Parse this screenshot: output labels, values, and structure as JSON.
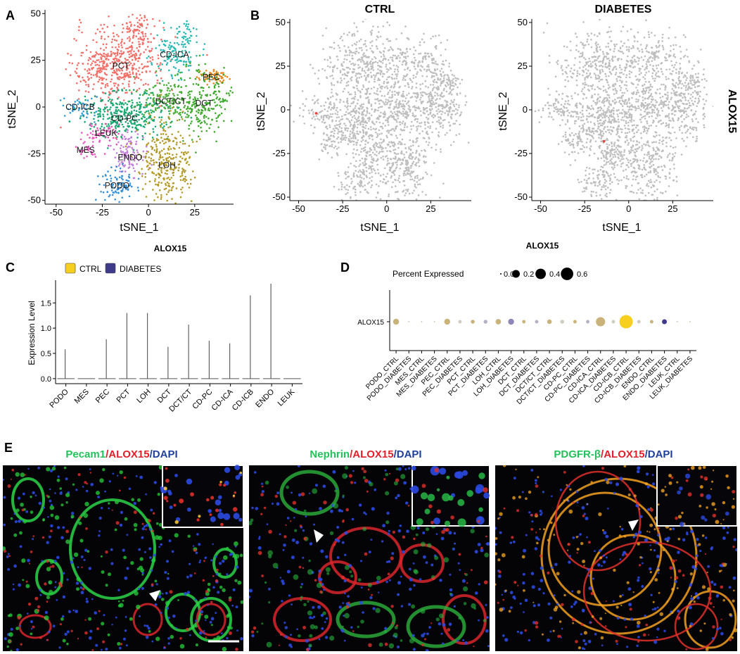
{
  "panels": {
    "A": "A",
    "B": "B",
    "C": "C",
    "D": "D",
    "E": "E"
  },
  "chart_data": [
    {
      "panel": "A",
      "type": "scatter",
      "xlabel": "tSNE_1",
      "ylabel": "tSNE_2",
      "xticks": [
        -50,
        -25,
        0,
        25
      ],
      "yticks": [
        50,
        25,
        0,
        -25,
        -50
      ],
      "xlim": [
        -56,
        46
      ],
      "ylim": [
        -52,
        52
      ],
      "clusters": [
        {
          "name": "PCT",
          "color": "#F2706A",
          "x": -15,
          "y": 22
        },
        {
          "name": "CD-ICA",
          "color": "#27B9B2",
          "x": 14,
          "y": 28
        },
        {
          "name": "PEC",
          "color": "#E8861A",
          "x": 34,
          "y": 16
        },
        {
          "name": "CD-ICB",
          "color": "#2E9DD8",
          "x": -37,
          "y": 0
        },
        {
          "name": "DCT/CT",
          "color": "#4BAE3A",
          "x": 12,
          "y": 3
        },
        {
          "name": "DCT",
          "color": "#3FAA2E",
          "x": 30,
          "y": 2
        },
        {
          "name": "CD-PC",
          "color": "#19A874",
          "x": -13,
          "y": -6
        },
        {
          "name": "LEUK",
          "color": "#E24FB1",
          "x": -23,
          "y": -14
        },
        {
          "name": "MES",
          "color": "#EB5AC0",
          "x": -34,
          "y": -23
        },
        {
          "name": "ENDO",
          "color": "#C37FD8",
          "x": -10,
          "y": -27
        },
        {
          "name": "LOH",
          "color": "#B39A27",
          "x": 10,
          "y": -31
        },
        {
          "name": "PODO",
          "color": "#3591D6",
          "x": -17,
          "y": -42
        }
      ]
    },
    {
      "panel": "B",
      "type": "scatter",
      "xlabel": "tSNE_1",
      "ylabel": "tSNE_2",
      "xticks": [
        -50,
        -25,
        0,
        25
      ],
      "yticks": [
        50,
        25,
        0,
        -25,
        -50
      ],
      "xlim": [
        -55,
        48
      ],
      "ylim": [
        -52,
        52
      ],
      "feature": "ALOX15",
      "base_color": "#BEBEBE",
      "highlight_color": "#E8403A",
      "panels": [
        {
          "title": "CTRL",
          "highlight": [
            {
              "x": -40,
              "y": -2
            }
          ]
        },
        {
          "title": "DIABETES",
          "highlight": [
            {
              "x": -14,
              "y": -18
            }
          ]
        }
      ]
    },
    {
      "panel": "C",
      "type": "violin",
      "title": "ALOX15",
      "ylabel": "Expression Level",
      "legend": [
        {
          "name": "CTRL",
          "color": "#F7CF1E"
        },
        {
          "name": "DIABETES",
          "color": "#3F3A8A"
        }
      ],
      "categories": [
        "PODO",
        "MES",
        "PEC",
        "PCT",
        "LOH",
        "DCT",
        "DCT/CT",
        "CD-PC",
        "CD-ICA",
        "CD-ICB",
        "ENDO",
        "LEUK"
      ],
      "max_values": [
        0.58,
        0.0,
        0.78,
        1.3,
        1.3,
        0.63,
        1.07,
        0.75,
        0.7,
        1.65,
        1.88,
        0.0
      ],
      "yticks": [
        0.0,
        0.5,
        1.0,
        1.5
      ],
      "ylim": [
        -0.1,
        1.95
      ]
    },
    {
      "panel": "D",
      "type": "dot",
      "title": "ALOX15",
      "size_legend_title": "Percent Expressed",
      "size_legend": [
        0.0,
        0.2,
        0.4,
        0.6
      ],
      "size_legend_labels": [
        "0.0",
        "0.2",
        "0.4",
        "0.6"
      ],
      "row_label": "ALOX15",
      "categories": [
        "PODO_CTRL",
        "PODO_DIABETES",
        "MES_CTRL",
        "MES_DIABETES",
        "PEC_CTRL",
        "PEC_DIABETES",
        "PCT_CTRL",
        "PCT_DIABETES",
        "LOH_CTRL",
        "LOH_DIABETES",
        "DCT_CTRL",
        "DCT_DIABETES",
        "DCT/CT_CTRL",
        "DCT/CT_DIABETES",
        "CD-PC_CTRL",
        "CD-PC_DIABETES",
        "CD-ICA_CTRL",
        "CD-ICA_DIABETES",
        "CD-ICB_CTRL",
        "CD-ICB_DIABETES",
        "ENDO_CTRL",
        "ENDO_DIABETES",
        "LEUK_CTRL",
        "LEUK_DIABETES"
      ],
      "percent": [
        0.1,
        0.0,
        0.0,
        0.0,
        0.1,
        0.02,
        0.03,
        0.03,
        0.08,
        0.1,
        0.02,
        0.02,
        0.05,
        0.03,
        0.02,
        0.02,
        0.3,
        0.02,
        0.7,
        0.02,
        0.02,
        0.06,
        0.0,
        0.0
      ],
      "colors": [
        "#C9B37A",
        "#D0CCC0",
        "#D0CCC0",
        "#D0CCC0",
        "#C9B37A",
        "#D0CCC0",
        "#C9B37A",
        "#B7B0C4",
        "#C9B37A",
        "#8F86B8",
        "#C9B37A",
        "#B7B0C4",
        "#C9B37A",
        "#D0CCC0",
        "#C9B37A",
        "#B7B0C4",
        "#C9B37A",
        "#D0CCC0",
        "#F7CF1E",
        "#D0CCC0",
        "#C9B37A",
        "#3F3A8A",
        "#D0CCC0",
        "#D0CCC0"
      ]
    }
  ],
  "panel_e": {
    "images": [
      {
        "marker": "Pecam1",
        "sep1": "/",
        "target": "ALOX15",
        "sep2": "/",
        "dapi": "DAPI",
        "marker_color": "#22C25A"
      },
      {
        "marker": "Nephrin",
        "sep1": "/",
        "target": "ALOX15",
        "sep2": "/",
        "dapi": "DAPI",
        "marker_color": "#22C25A"
      },
      {
        "marker": "PDGFR-β",
        "sep1": "/",
        "target": "ALOX15",
        "sep2": "/",
        "dapi": "DAPI",
        "marker_color": "#22C25A"
      }
    ],
    "target_color": "#E0202A",
    "dapi_color": "#1F3F9C"
  }
}
